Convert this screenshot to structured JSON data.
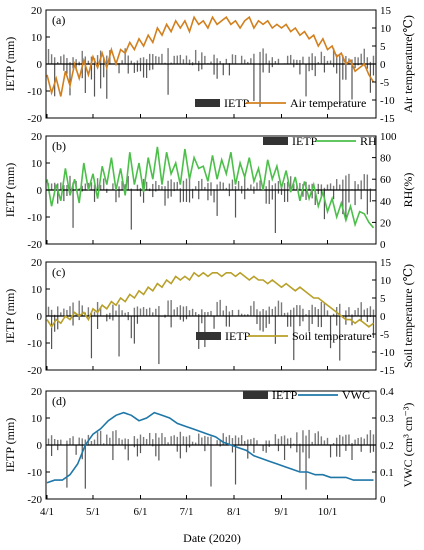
{
  "figure": {
    "xlabel": "Date (2020)",
    "x_ticks": [
      "4/1",
      "5/1",
      "6/1",
      "7/1",
      "8/1",
      "9/1",
      "10/1"
    ]
  },
  "chart_data": [
    {
      "type": "bar+line",
      "panel_label": "(a)",
      "left_axis": {
        "label": "IETP (mm)",
        "ylim": [
          -20,
          20
        ],
        "ticks": [
          "20",
          "10",
          "0",
          "-10",
          "-20"
        ]
      },
      "right_axis": {
        "label": "Air temperature(℃)",
        "ylim": [
          -15,
          15
        ],
        "ticks": [
          "15",
          "10",
          "5",
          "0",
          "-5",
          "-10",
          "-15"
        ]
      },
      "legend": {
        "bar": "IETP",
        "line": "Air temperature"
      },
      "line_color": "#d2801e",
      "line_days": [
        0,
        3,
        6,
        9,
        12,
        15,
        18,
        21,
        24,
        27,
        30,
        33,
        36,
        39,
        42,
        45,
        48,
        51,
        54,
        57,
        60,
        63,
        66,
        69,
        72,
        75,
        78,
        81,
        84,
        87,
        90,
        93,
        96,
        99,
        102,
        105,
        108,
        111,
        114,
        117,
        120,
        123,
        126,
        129,
        132,
        135,
        138,
        141,
        144,
        147,
        150,
        153,
        156,
        159,
        162,
        165,
        168,
        171,
        174,
        177,
        180,
        183,
        186,
        189,
        192,
        195,
        198,
        201,
        204,
        207,
        210,
        213
      ],
      "line_values": [
        -3,
        -8,
        -4,
        -9,
        -2,
        -6,
        0,
        -4,
        1,
        -3,
        2,
        -1,
        3,
        -1,
        4,
        0,
        4,
        3,
        6,
        4,
        7,
        5,
        8,
        6,
        10,
        8,
        11,
        9,
        12,
        10,
        12,
        9,
        13,
        11,
        12,
        10,
        13,
        11,
        12,
        13,
        11,
        12,
        10,
        12,
        13,
        10,
        12,
        11,
        12,
        10,
        11,
        10,
        11,
        9,
        10,
        8,
        9,
        7,
        8,
        5,
        7,
        4,
        5,
        2,
        3,
        0,
        1,
        -2,
        -1,
        0,
        -3,
        -5
      ]
    },
    {
      "type": "bar+line",
      "panel_label": "(b)",
      "left_axis": {
        "label": "IETP (mm)",
        "ylim": [
          -20,
          20
        ],
        "ticks": [
          "20",
          "10",
          "0",
          "-10",
          "-20"
        ]
      },
      "right_axis": {
        "label": "RH(%)",
        "ylim": [
          0,
          100
        ],
        "ticks": [
          "100",
          "80",
          "60",
          "40",
          "20",
          "0"
        ]
      },
      "legend": {
        "bar": "IETP",
        "line": "RH"
      },
      "line_color": "#4cbf4a",
      "line_days": [
        0,
        3,
        6,
        9,
        12,
        15,
        18,
        21,
        24,
        27,
        30,
        33,
        36,
        39,
        42,
        45,
        48,
        51,
        54,
        57,
        60,
        63,
        66,
        69,
        72,
        75,
        78,
        81,
        84,
        87,
        90,
        93,
        96,
        99,
        102,
        105,
        108,
        111,
        114,
        117,
        120,
        123,
        126,
        129,
        132,
        135,
        138,
        141,
        144,
        147,
        150,
        153,
        156,
        159,
        162,
        165,
        168,
        171,
        174,
        177,
        180,
        183,
        186,
        189,
        192,
        195,
        198,
        201,
        204,
        207,
        210,
        213
      ],
      "line_values": [
        60,
        35,
        55,
        40,
        70,
        45,
        60,
        38,
        75,
        50,
        65,
        42,
        72,
        55,
        80,
        50,
        70,
        45,
        85,
        55,
        75,
        48,
        80,
        60,
        90,
        55,
        85,
        65,
        75,
        55,
        88,
        60,
        80,
        70,
        72,
        58,
        82,
        60,
        78,
        65,
        85,
        55,
        75,
        62,
        80,
        58,
        70,
        50,
        78,
        60,
        72,
        52,
        68,
        48,
        62,
        40,
        58,
        42,
        55,
        35,
        48,
        30,
        42,
        25,
        38,
        22,
        35,
        18,
        30,
        28,
        20,
        15
      ]
    },
    {
      "type": "bar+line",
      "panel_label": "(c)",
      "left_axis": {
        "label": "IETP (mm)",
        "ylim": [
          -20,
          20
        ],
        "ticks": [
          "20",
          "10",
          "0",
          "-10",
          "-20"
        ]
      },
      "right_axis": {
        "label": "Soil temperature (℃)",
        "ylim": [
          -15,
          15
        ],
        "ticks": [
          "15",
          "10",
          "5",
          "0",
          "-5",
          "-10",
          "-15"
        ]
      },
      "legend": {
        "bar": "IETP",
        "line": "Soil temperature"
      },
      "line_color": "#b8a02a",
      "line_days": [
        0,
        3,
        6,
        9,
        12,
        15,
        18,
        21,
        24,
        27,
        30,
        33,
        36,
        39,
        42,
        45,
        48,
        51,
        54,
        57,
        60,
        63,
        66,
        69,
        72,
        75,
        78,
        81,
        84,
        87,
        90,
        93,
        96,
        99,
        102,
        105,
        108,
        111,
        114,
        117,
        120,
        123,
        126,
        129,
        132,
        135,
        138,
        141,
        144,
        147,
        150,
        153,
        156,
        159,
        162,
        165,
        168,
        171,
        174,
        177,
        180,
        183,
        186,
        189,
        192,
        195,
        198,
        201,
        204,
        207,
        210,
        213
      ],
      "line_values": [
        -1,
        -3,
        -1,
        -2,
        0,
        -1,
        1,
        0,
        1,
        -1,
        2,
        1,
        3,
        2,
        4,
        3,
        5,
        4,
        6,
        5,
        7,
        6,
        8,
        7,
        9,
        8,
        10,
        9,
        11,
        10,
        11,
        10,
        12,
        11,
        12,
        11,
        12,
        12,
        11,
        12,
        12,
        11,
        12,
        11,
        10,
        11,
        10,
        10,
        9,
        10,
        9,
        8,
        9,
        8,
        7,
        8,
        7,
        6,
        5,
        5,
        4,
        3,
        2,
        1,
        0,
        -1,
        -1,
        -2,
        -1,
        -2,
        -3,
        -2
      ]
    },
    {
      "type": "bar+line",
      "panel_label": "(d)",
      "left_axis": {
        "label": "IETP (mm)",
        "ylim": [
          -20,
          20
        ],
        "ticks": [
          "20",
          "10",
          "0",
          "-10",
          "-20"
        ]
      },
      "right_axis": {
        "label": "VWC (cm³ cm⁻³)",
        "ylim": [
          0,
          0.4
        ],
        "ticks": [
          "0.4",
          "0.3",
          "0.2",
          "0.1",
          "0"
        ]
      },
      "legend": {
        "bar": "IETP",
        "line": "VWC"
      },
      "line_color": "#1f77a8",
      "line_days": [
        0,
        5,
        10,
        15,
        20,
        25,
        30,
        35,
        40,
        45,
        50,
        55,
        60,
        65,
        70,
        75,
        80,
        85,
        90,
        95,
        100,
        105,
        110,
        115,
        120,
        125,
        130,
        135,
        140,
        145,
        150,
        155,
        160,
        165,
        170,
        175,
        180,
        185,
        190,
        195,
        200,
        205,
        210,
        213
      ],
      "line_values": [
        0.06,
        0.07,
        0.07,
        0.09,
        0.13,
        0.2,
        0.24,
        0.26,
        0.29,
        0.31,
        0.32,
        0.31,
        0.29,
        0.3,
        0.32,
        0.31,
        0.3,
        0.28,
        0.27,
        0.26,
        0.25,
        0.24,
        0.23,
        0.21,
        0.2,
        0.19,
        0.18,
        0.16,
        0.15,
        0.14,
        0.13,
        0.12,
        0.11,
        0.1,
        0.1,
        0.09,
        0.09,
        0.08,
        0.08,
        0.08,
        0.07,
        0.07,
        0.07,
        0.07
      ]
    }
  ]
}
